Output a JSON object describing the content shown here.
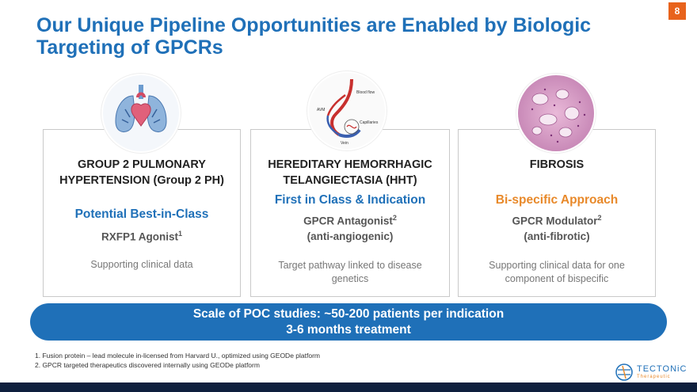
{
  "page_number": "8",
  "title": "Our Unique Pipeline Opportunities are Enabled by Biologic Targeting of GPCRs",
  "cards": [
    {
      "title_line1": "GROUP 2 PULMONARY",
      "title_line2": "HYPERTENSION (Group 2 PH)",
      "highlight": "Potential Best-in-Class",
      "sub1": "RXFP1 Agonist",
      "sub1_sup": "1",
      "sub2": "",
      "note": "Supporting clinical data",
      "image": "heart-lungs-icon"
    },
    {
      "title_line1": "HEREDITARY HEMORRHAGIC",
      "title_line2": "TELANGIECTASIA (HHT)",
      "highlight": "First in Class & Indication",
      "sub1": "GPCR Antagonist",
      "sub1_sup": "2",
      "sub2": "(anti-angiogenic)",
      "note": "Target pathway linked to disease genetics",
      "image": "blood-vessel-diagram",
      "diagram_labels": [
        "Blood flow",
        "AVM",
        "Capillaries",
        "Vein"
      ]
    },
    {
      "title_line1": "FIBROSIS",
      "title_line2": "",
      "highlight": "Bi-specific Approach",
      "sub1": "GPCR Modulator",
      "sub1_sup": "2",
      "sub2": "(anti-fibrotic)",
      "note": "Supporting clinical data for one component of bispecific",
      "image": "tissue-histology-image"
    }
  ],
  "banner": {
    "line1": "Scale of POC studies: ~50-200 patients per indication",
    "line2": "3-6 months treatment"
  },
  "footnotes": [
    "1.   Fusion protein – lead molecule in-licensed from Harvard U., optimized using GEODe platform",
    "2.   GPCR targeted therapeutics discovered internally using GEODe platform"
  ],
  "logo": {
    "name": "TECTONiC",
    "sub": "Therapeutic"
  },
  "colors": {
    "primary": "#1f70b8",
    "accent": "#e8892a",
    "page_badge": "#e8631c",
    "footer": "#0e1f3d"
  }
}
